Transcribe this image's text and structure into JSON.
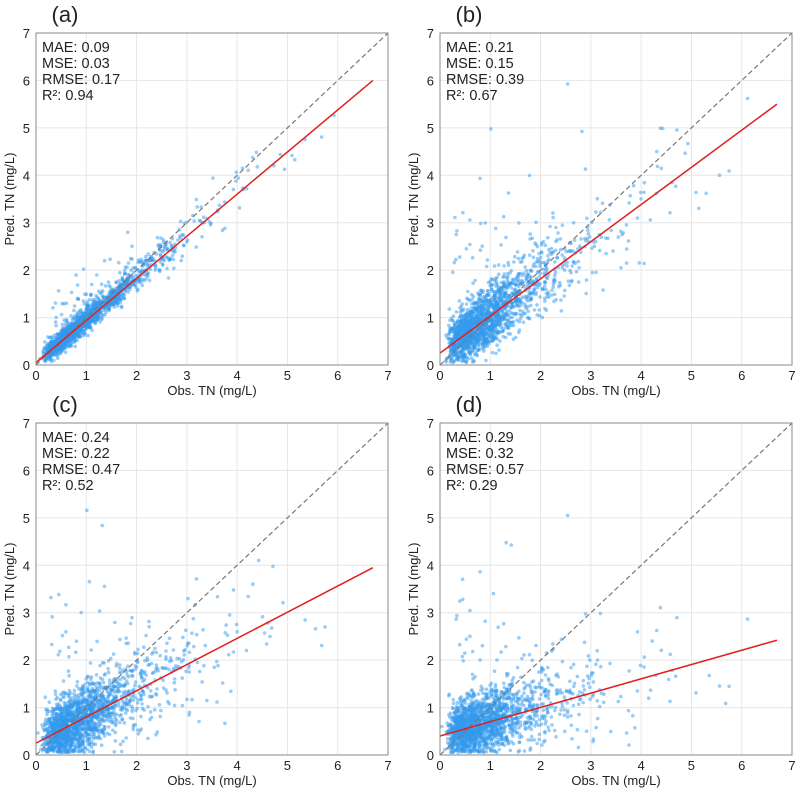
{
  "chart_data": [
    {
      "type": "scatter",
      "panel_label": "(a)",
      "xlabel": "Obs. TN (mg/L)",
      "ylabel": "Pred. TN (mg/L)",
      "xlim": [
        0,
        7
      ],
      "ylim": [
        0,
        7
      ],
      "xticks": [
        "0",
        "1",
        "2",
        "3",
        "4",
        "5",
        "6",
        "7"
      ],
      "yticks": [
        "0",
        "1",
        "2",
        "3",
        "4",
        "5",
        "6",
        "7"
      ],
      "metrics": [
        "MAE: 0.09",
        "MSE: 0.03",
        "RMSE: 0.17",
        "R²: 0.94"
      ],
      "fit_line": {
        "x": [
          0,
          6.7
        ],
        "y": [
          0.05,
          6.0
        ]
      },
      "identity_line": {
        "x": [
          0,
          7
        ],
        "y": [
          0,
          7
        ]
      },
      "point_cloud": {
        "n": 1800,
        "slope": 0.9,
        "intercept": 0.05,
        "noise": 0.14
      },
      "colors": {
        "points": "#3399ee",
        "fit": "#e02020",
        "identity": "#777777"
      }
    },
    {
      "type": "scatter",
      "panel_label": "(b)",
      "xlabel": "Obs. TN (mg/L)",
      "ylabel": "Pred. TN (mg/L)",
      "xlim": [
        0,
        7
      ],
      "ylim": [
        0,
        7
      ],
      "xticks": [
        "0",
        "1",
        "2",
        "3",
        "4",
        "5",
        "6",
        "7"
      ],
      "yticks": [
        "0",
        "1",
        "2",
        "3",
        "4",
        "5",
        "6",
        "7"
      ],
      "metrics": [
        "MAE: 0.21",
        "MSE: 0.15",
        "RMSE: 0.39",
        "R²: 0.67"
      ],
      "fit_line": {
        "x": [
          0,
          6.7
        ],
        "y": [
          0.25,
          5.5
        ]
      },
      "identity_line": {
        "x": [
          0,
          7
        ],
        "y": [
          0,
          7
        ]
      },
      "point_cloud": {
        "n": 1800,
        "slope": 0.78,
        "intercept": 0.25,
        "noise": 0.38
      },
      "colors": {
        "points": "#3399ee",
        "fit": "#e02020",
        "identity": "#777777"
      }
    },
    {
      "type": "scatter",
      "panel_label": "(c)",
      "xlabel": "Obs. TN (mg/L)",
      "ylabel": "Pred. TN (mg/L)",
      "xlim": [
        0,
        7
      ],
      "ylim": [
        0,
        7
      ],
      "xticks": [
        "0",
        "1",
        "2",
        "3",
        "4",
        "5",
        "6",
        "7"
      ],
      "yticks": [
        "0",
        "1",
        "2",
        "3",
        "4",
        "5",
        "6",
        "7"
      ],
      "metrics": [
        "MAE: 0.24",
        "MSE: 0.22",
        "RMSE: 0.47",
        "R²: 0.52"
      ],
      "fit_line": {
        "x": [
          0,
          6.7
        ],
        "y": [
          0.25,
          3.95
        ]
      },
      "identity_line": {
        "x": [
          0,
          7
        ],
        "y": [
          0,
          7
        ]
      },
      "point_cloud": {
        "n": 1800,
        "slope": 0.55,
        "intercept": 0.25,
        "noise": 0.42
      },
      "colors": {
        "points": "#3399ee",
        "fit": "#e02020",
        "identity": "#777777"
      }
    },
    {
      "type": "scatter",
      "panel_label": "(d)",
      "xlabel": "Obs. TN (mg/L)",
      "ylabel": "Pred. TN (mg/L)",
      "xlim": [
        0,
        7
      ],
      "ylim": [
        0,
        7
      ],
      "xticks": [
        "0",
        "1",
        "2",
        "3",
        "4",
        "5",
        "6",
        "7"
      ],
      "yticks": [
        "0",
        "1",
        "2",
        "3",
        "4",
        "5",
        "6",
        "7"
      ],
      "metrics": [
        "MAE: 0.29",
        "MSE: 0.32",
        "RMSE: 0.57",
        "R²: 0.29"
      ],
      "fit_line": {
        "x": [
          0,
          6.7
        ],
        "y": [
          0.4,
          2.42
        ]
      },
      "identity_line": {
        "x": [
          0,
          7
        ],
        "y": [
          0,
          7
        ]
      },
      "point_cloud": {
        "n": 1800,
        "slope": 0.3,
        "intercept": 0.4,
        "noise": 0.4
      },
      "colors": {
        "points": "#3399ee",
        "fit": "#e02020",
        "identity": "#777777"
      }
    }
  ]
}
